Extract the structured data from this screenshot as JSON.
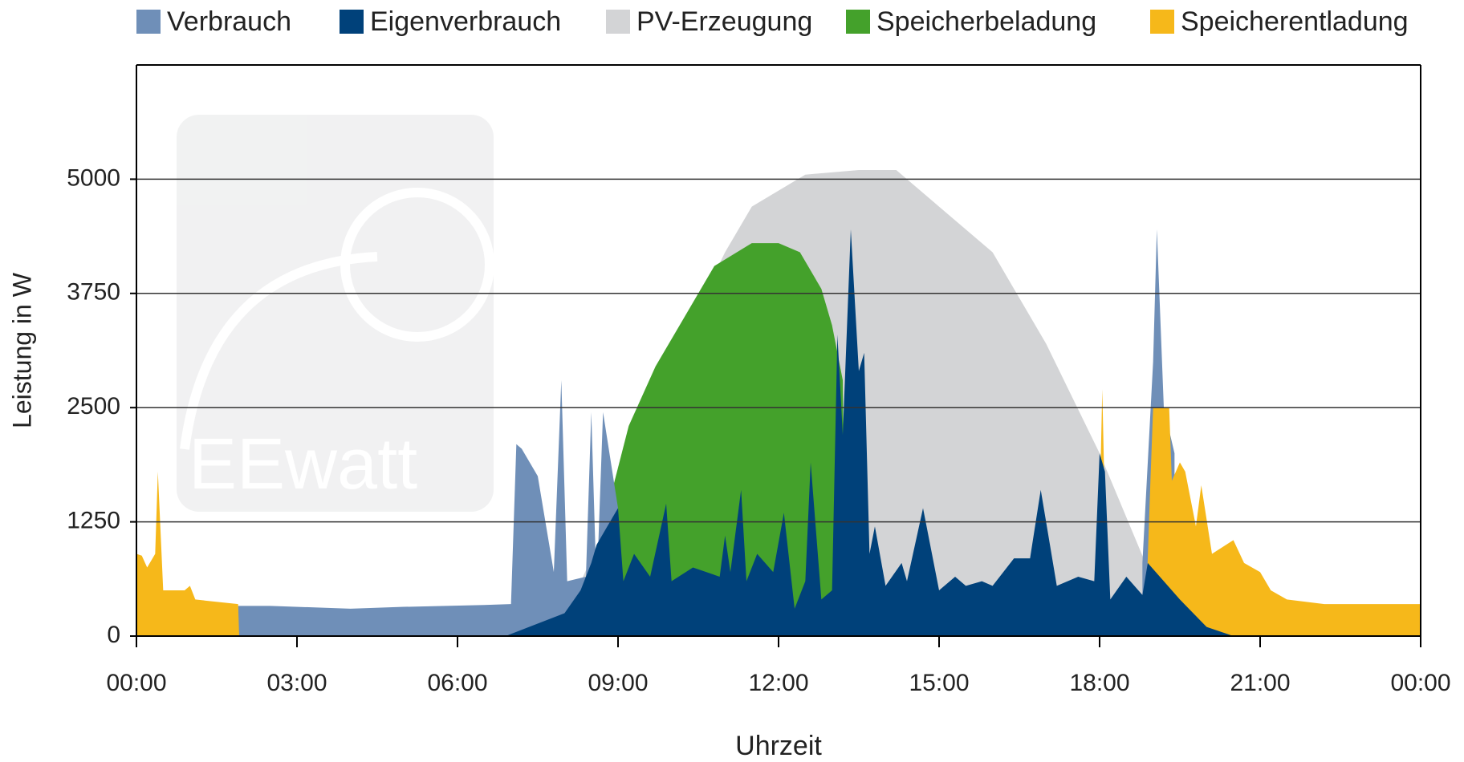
{
  "chart_data": {
    "type": "area",
    "watermark": "EEwatt",
    "x_label": "Uhrzeit",
    "y_label": "Leistung in W",
    "xlim": [
      0,
      24
    ],
    "xticks": [
      {
        "value": 0,
        "label": "00:00"
      },
      {
        "value": 3,
        "label": "03:00"
      },
      {
        "value": 6,
        "label": "06:00"
      },
      {
        "value": 9,
        "label": "09:00"
      },
      {
        "value": 12,
        "label": "12:00"
      },
      {
        "value": 15,
        "label": "15:00"
      },
      {
        "value": 18,
        "label": "18:00"
      },
      {
        "value": 21,
        "label": "21:00"
      },
      {
        "value": 24,
        "label": "00:00"
      }
    ],
    "ylim": [
      0,
      6250
    ],
    "yticks": [
      0,
      1250,
      2500,
      3750,
      5000
    ],
    "grid": true,
    "legend": "top",
    "series": [
      {
        "name": "Verbrauch",
        "color": "#6f8fb8",
        "x": [
          1.9,
          2.5,
          4,
          5,
          6.5,
          7,
          7.1,
          7.2,
          7.5,
          7.8,
          7.94,
          8.05,
          8.4,
          8.5,
          8.6,
          8.72,
          9.0,
          null,
          18.8,
          19.0,
          19.07,
          19.2,
          19.4
        ],
        "values": [
          330,
          330,
          300,
          320,
          340,
          350,
          2100,
          2050,
          1750,
          700,
          2800,
          600,
          650,
          2450,
          500,
          2450,
          1400,
          null,
          800,
          3000,
          4450,
          2500,
          2000
        ]
      },
      {
        "name": "Eigenverbrauch",
        "color": "#00417a",
        "x": [
          6.9,
          8,
          8.3,
          8.5,
          8.6,
          8.8,
          9,
          9.1,
          9.3,
          9.6,
          9.9,
          10,
          10.4,
          10.9,
          11,
          11.1,
          11.3,
          11.4,
          11.6,
          11.9,
          12.1,
          12.3,
          12.5,
          12.6,
          12.8,
          13.0,
          13.1,
          13.2,
          13.35,
          13.5,
          13.6,
          13.7,
          13.8,
          14.0,
          14.3,
          14.4,
          14.7,
          15.0,
          15.3,
          15.5,
          15.8,
          16.0,
          16.4,
          16.7,
          16.9,
          17.2,
          17.6,
          17.9,
          18.0,
          18.1,
          18.2,
          18.5,
          18.8,
          18.9,
          19.5,
          20,
          20.5
        ],
        "values": [
          0,
          250,
          500,
          800,
          1000,
          1200,
          1400,
          600,
          900,
          650,
          1450,
          600,
          750,
          650,
          1100,
          700,
          1600,
          600,
          900,
          700,
          1350,
          300,
          600,
          1900,
          400,
          500,
          3300,
          2200,
          4450,
          2900,
          3100,
          900,
          1200,
          550,
          800,
          600,
          1400,
          500,
          650,
          550,
          600,
          550,
          850,
          850,
          1600,
          550,
          650,
          600,
          2000,
          1800,
          400,
          650,
          450,
          800,
          400,
          100,
          0
        ]
      },
      {
        "name": "PV-Erzeugung",
        "color": "#d3d4d6",
        "x": [
          7,
          8,
          9,
          10,
          11,
          11.5,
          12.5,
          13.5,
          14.2,
          15,
          16,
          17,
          18,
          19,
          20,
          20.5
        ],
        "values": [
          0,
          200,
          1500,
          3000,
          4200,
          4700,
          5050,
          5100,
          5100,
          4700,
          4200,
          3200,
          2000,
          600,
          100,
          0
        ]
      },
      {
        "name": "Speicherbeladung",
        "color": "#44a12b",
        "x": [
          8.8,
          8.85,
          9.2,
          9.7,
          10.2,
          10.8,
          11.5,
          12,
          12.4,
          12.8,
          13.0,
          13.2,
          13.25
        ],
        "values": [
          0,
          1500,
          2300,
          2950,
          3450,
          4050,
          4300,
          4300,
          4200,
          3800,
          3400,
          2800,
          0
        ]
      },
      {
        "name": "Speicherentladung",
        "color": "#f6b81a",
        "x": [
          0,
          0.1,
          0.2,
          0.35,
          0.4,
          0.5,
          0.9,
          1.0,
          1.1,
          1.9,
          1.92,
          null,
          17.95,
          18.05,
          18.15,
          null,
          18.85,
          18.95,
          19.0,
          19.3,
          19.35,
          19.5,
          19.6,
          19.8,
          19.9,
          20.1,
          20.5,
          20.7,
          21,
          21.2,
          21.5,
          22.2,
          24
        ],
        "values": [
          900,
          880,
          750,
          900,
          1800,
          500,
          500,
          550,
          400,
          350,
          0,
          null,
          0,
          2700,
          0,
          null,
          0,
          1700,
          2500,
          2500,
          1700,
          1900,
          1800,
          1200,
          1650,
          900,
          1050,
          800,
          700,
          500,
          400,
          350,
          350
        ]
      }
    ]
  }
}
